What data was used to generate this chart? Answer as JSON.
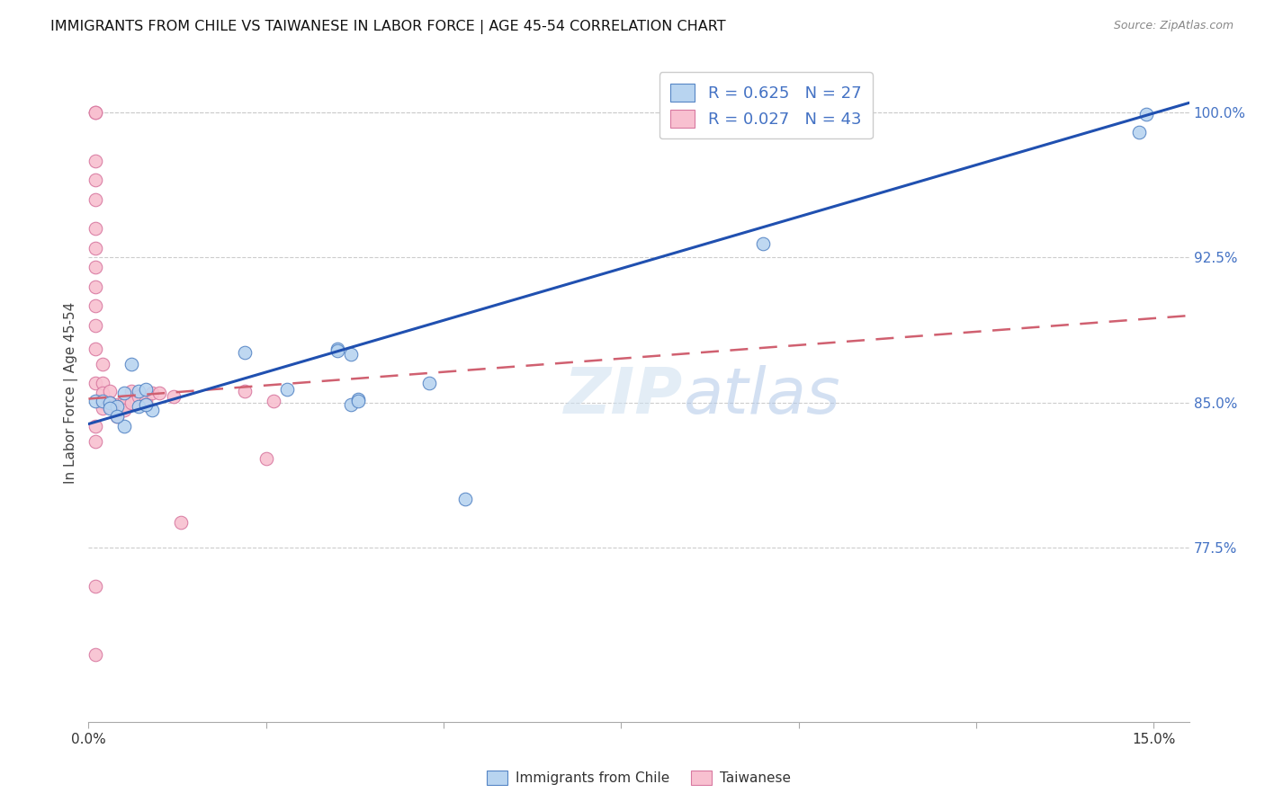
{
  "title": "IMMIGRANTS FROM CHILE VS TAIWANESE IN LABOR FORCE | AGE 45-54 CORRELATION CHART",
  "source": "Source: ZipAtlas.com",
  "ylabel": "In Labor Force | Age 45-54",
  "xlim": [
    0.0,
    0.155
  ],
  "ylim": [
    0.685,
    1.025
  ],
  "yticks_right": [
    0.775,
    0.85,
    0.925,
    1.0
  ],
  "ytick_right_labels": [
    "77.5%",
    "85.0%",
    "92.5%",
    "100.0%"
  ],
  "color_chile_fill": "#b8d4f0",
  "color_chile_edge": "#5585c5",
  "color_taiwan_fill": "#f8c0d0",
  "color_taiwan_edge": "#d878a0",
  "color_trend_chile": "#2050b0",
  "color_trend_taiwan": "#d06070",
  "trend_chile_x0": 0.0,
  "trend_chile_y0": 0.839,
  "trend_chile_x1": 0.155,
  "trend_chile_y1": 1.005,
  "trend_taiwan_x0": 0.0,
  "trend_taiwan_y0": 0.852,
  "trend_taiwan_x1": 0.155,
  "trend_taiwan_y1": 0.895,
  "chile_x": [
    0.001,
    0.002,
    0.003,
    0.004,
    0.005,
    0.005,
    0.006,
    0.007,
    0.008,
    0.009,
    0.022,
    0.028,
    0.035,
    0.037,
    0.048,
    0.053,
    0.037,
    0.038,
    0.095,
    0.148,
    0.149,
    0.003,
    0.004,
    0.007,
    0.008,
    0.035,
    0.038
  ],
  "chile_y": [
    0.851,
    0.851,
    0.85,
    0.848,
    0.855,
    0.838,
    0.87,
    0.856,
    0.857,
    0.846,
    0.876,
    0.857,
    0.878,
    0.875,
    0.86,
    0.8,
    0.849,
    0.852,
    0.932,
    0.99,
    0.999,
    0.847,
    0.843,
    0.848,
    0.849,
    0.877,
    0.851
  ],
  "taiwan_x": [
    0.001,
    0.001,
    0.001,
    0.001,
    0.001,
    0.001,
    0.001,
    0.001,
    0.001,
    0.001,
    0.001,
    0.001,
    0.001,
    0.002,
    0.002,
    0.002,
    0.002,
    0.002,
    0.003,
    0.003,
    0.003,
    0.004,
    0.004,
    0.004,
    0.005,
    0.005,
    0.005,
    0.006,
    0.006,
    0.007,
    0.008,
    0.008,
    0.009,
    0.01,
    0.012,
    0.013,
    0.022,
    0.025,
    0.026,
    0.001,
    0.001,
    0.001,
    0.001
  ],
  "taiwan_y": [
    1.0,
    1.0,
    0.975,
    0.965,
    0.955,
    0.94,
    0.93,
    0.92,
    0.91,
    0.9,
    0.89,
    0.878,
    0.86,
    0.87,
    0.86,
    0.855,
    0.85,
    0.847,
    0.856,
    0.85,
    0.848,
    0.849,
    0.845,
    0.843,
    0.851,
    0.849,
    0.846,
    0.856,
    0.85,
    0.853,
    0.851,
    0.849,
    0.855,
    0.855,
    0.853,
    0.788,
    0.856,
    0.821,
    0.851,
    0.838,
    0.83,
    0.755,
    0.72
  ]
}
